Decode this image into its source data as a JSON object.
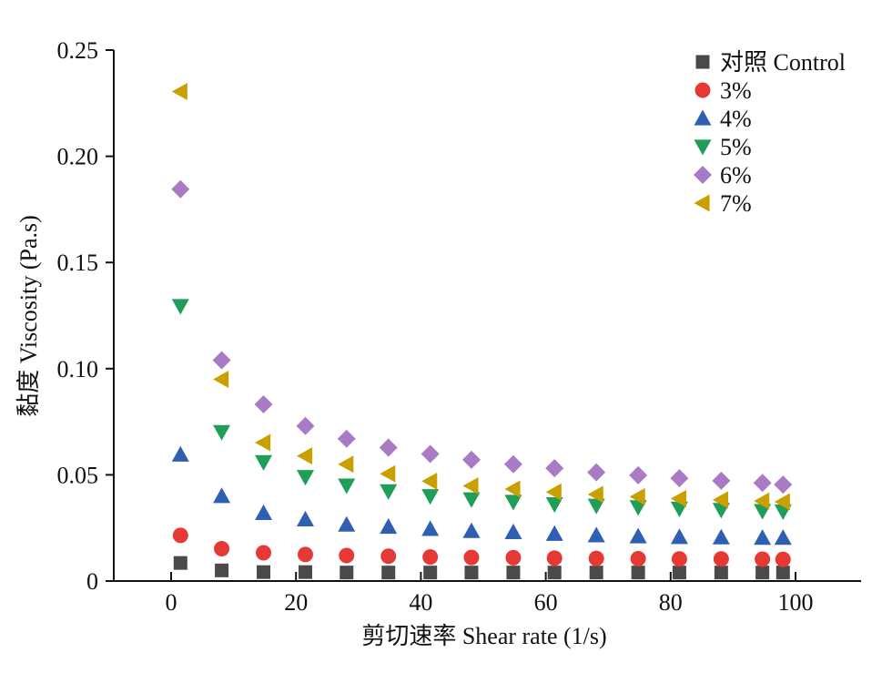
{
  "chart_data": {
    "type": "scatter",
    "xlabel": "剪切速率 Shear rate (1/s)",
    "ylabel": "黏度 Viscosity (Pa.s)",
    "xlim": [
      -8,
      110
    ],
    "ylim": [
      0,
      0.25
    ],
    "x_ticks": [
      0,
      20,
      40,
      60,
      80,
      100
    ],
    "x_tick_labels": [
      "0",
      "20",
      "40",
      "60",
      "80",
      "100"
    ],
    "y_ticks": [
      0,
      0.05,
      0.1,
      0.15,
      0.2,
      0.25
    ],
    "y_tick_labels": [
      "0",
      "0.05",
      "0.10",
      "0.15",
      "0.20",
      "0.25"
    ],
    "grid": false,
    "legend_position": "top-right",
    "x": [
      1.5,
      8.1,
      14.8,
      21.5,
      28.1,
      34.8,
      41.5,
      48.1,
      54.8,
      61.4,
      68.1,
      74.8,
      81.4,
      88.1,
      94.7,
      98.0
    ],
    "series": [
      {
        "name": "对照 Control",
        "marker": "square",
        "color": "#4a4a4a",
        "values": [
          0.0085,
          0.005,
          0.0042,
          0.0042,
          0.004,
          0.004,
          0.004,
          0.004,
          0.004,
          0.004,
          0.004,
          0.004,
          0.004,
          0.004,
          0.004,
          0.004
        ]
      },
      {
        "name": "3%",
        "marker": "circle",
        "color": "#e53935",
        "values": [
          0.0215,
          0.0152,
          0.0133,
          0.0125,
          0.012,
          0.0117,
          0.0113,
          0.0111,
          0.011,
          0.0108,
          0.0106,
          0.0105,
          0.0104,
          0.0104,
          0.0103,
          0.0102
        ]
      },
      {
        "name": "4%",
        "marker": "triangle-up",
        "color": "#2f5fb3",
        "values": [
          0.0595,
          0.04,
          0.032,
          0.029,
          0.0265,
          0.0255,
          0.0245,
          0.0235,
          0.023,
          0.0222,
          0.0215,
          0.021,
          0.0207,
          0.0205,
          0.0203,
          0.0203
        ]
      },
      {
        "name": "5%",
        "marker": "triangle-down",
        "color": "#1f9e5a",
        "values": [
          0.1295,
          0.0702,
          0.056,
          0.049,
          0.045,
          0.0423,
          0.04,
          0.0385,
          0.0373,
          0.0362,
          0.0355,
          0.0348,
          0.0341,
          0.0335,
          0.033,
          0.0328
        ]
      },
      {
        "name": "6%",
        "marker": "diamond",
        "color": "#a97bc4",
        "values": [
          0.1845,
          0.104,
          0.0832,
          0.073,
          0.067,
          0.0628,
          0.0598,
          0.0571,
          0.055,
          0.0531,
          0.0512,
          0.0498,
          0.0484,
          0.0472,
          0.0462,
          0.0454
        ]
      },
      {
        "name": "7%",
        "marker": "triangle-left",
        "color": "#c9a000",
        "values": [
          0.2305,
          0.095,
          0.0652,
          0.0589,
          0.055,
          0.0505,
          0.047,
          0.0448,
          0.0433,
          0.0419,
          0.0408,
          0.0397,
          0.0388,
          0.0382,
          0.0377,
          0.0373
        ]
      }
    ]
  }
}
